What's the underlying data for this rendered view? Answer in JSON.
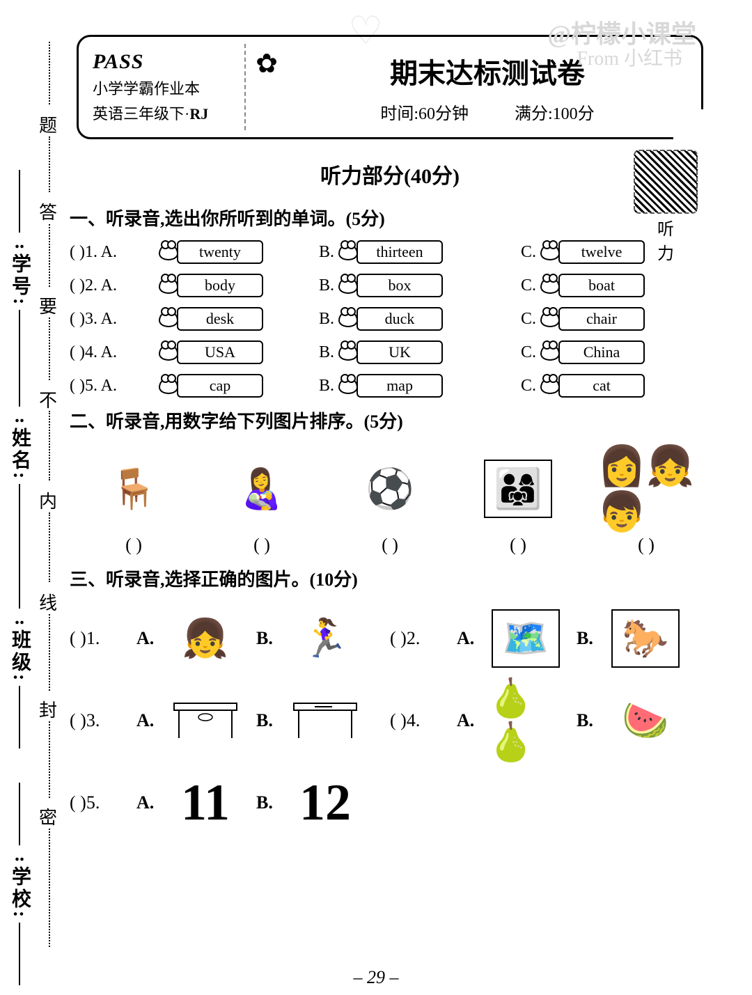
{
  "watermark": {
    "main": "@柠檬小课堂",
    "sub": "From 小红书"
  },
  "header": {
    "logo": "PASS",
    "sub1": "小学学霸作业本",
    "sub2_pre": "英语三年级下·",
    "sub2_rj": "RJ",
    "title": "期末达标测试卷",
    "time": "时间:60分钟",
    "score": "满分:100分"
  },
  "side": {
    "l1": "学号:",
    "l2": "姓名:",
    "l3": "班级:",
    "l4": "学校:",
    "b1": "题",
    "b2": "答",
    "b3": "要",
    "b4": "不",
    "b5": "内",
    "b6": "线",
    "b7": "封",
    "b8": "密"
  },
  "listening_title": "听力部分(40分)",
  "qr_label": "听 力",
  "s1": {
    "heading": "一、听录音,选出你所听到的单词。(5分)",
    "rows": [
      {
        "n": "(    )1. A.",
        "a": "twenty",
        "b": "thirteen",
        "c": "twelve"
      },
      {
        "n": "(    )2. A.",
        "a": "body",
        "b": "box",
        "c": "boat"
      },
      {
        "n": "(    )3. A.",
        "a": "desk",
        "b": "duck",
        "c": "chair"
      },
      {
        "n": "(    )4. A.",
        "a": "USA",
        "b": "UK",
        "c": "China"
      },
      {
        "n": "(    )5. A.",
        "a": "cap",
        "b": "map",
        "c": "cat"
      }
    ]
  },
  "s2": {
    "heading": "二、听录音,用数字给下列图片排序。(5分)",
    "paren": "(     )"
  },
  "s3": {
    "heading": "三、听录音,选择正确的图片。(10分)",
    "n1": "(    )1.",
    "n2": "(    )2.",
    "n3": "(    )3.",
    "n4": "(    )4.",
    "n5": "(    )5.",
    "A": "A.",
    "B": "B.",
    "num_a": "11",
    "num_b": "12"
  },
  "page": "– 29 –",
  "labels": {
    "B": "B.",
    "C": "C."
  }
}
